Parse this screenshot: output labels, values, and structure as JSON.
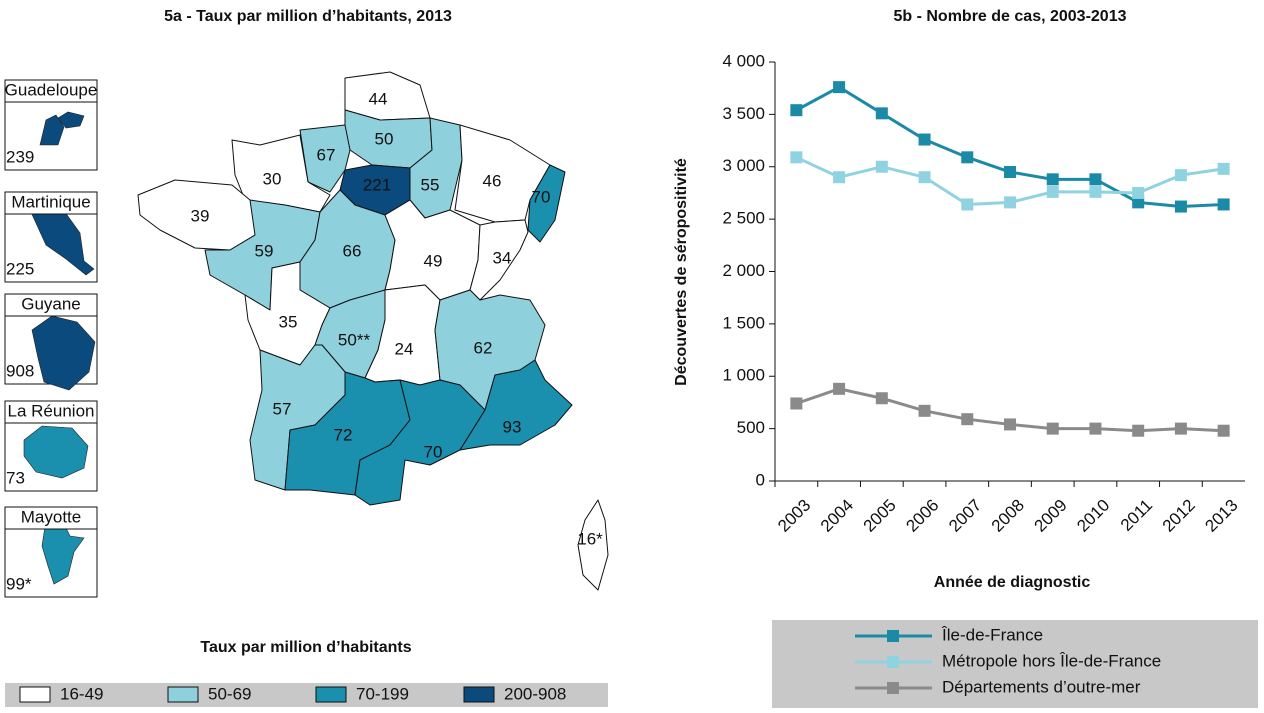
{
  "chart_data": [
    {
      "type": "map",
      "title": "5a - Taux par million d’habitants, 2013",
      "values": [
        44,
        50,
        67,
        30,
        39,
        221,
        55,
        46,
        70,
        59,
        66,
        49,
        34,
        35,
        50,
        24,
        62,
        57,
        72,
        70,
        93,
        16
      ],
      "value_labels": [
        "44",
        "50",
        "67",
        "30",
        "39",
        "221",
        "55",
        "46",
        "70",
        "59",
        "66",
        "49",
        "34",
        "35",
        "50**",
        "24",
        "62",
        "57",
        "72",
        "70",
        "93",
        "16*"
      ],
      "colors": [
        "#ffffff",
        "#8fd0dd",
        "#8fd0dd",
        "#ffffff",
        "#ffffff",
        "#0b4a7c",
        "#8fd0dd",
        "#ffffff",
        "#1a8fae",
        "#8fd0dd",
        "#8fd0dd",
        "#ffffff",
        "#ffffff",
        "#ffffff",
        "#8fd0dd",
        "#ffffff",
        "#8fd0dd",
        "#8fd0dd",
        "#1a8fae",
        "#1a8fae",
        "#1a8fae",
        "#ffffff"
      ],
      "insets": {
        "names": [
          "Guadeloupe",
          "Martinique",
          "Guyane",
          "La Réunion",
          "Mayotte"
        ],
        "values": [
          239,
          225,
          908,
          73,
          99
        ],
        "value_labels": [
          "239",
          "225",
          "908",
          "73",
          "99*"
        ],
        "colors": [
          "#0b4a7c",
          "#0b4a7c",
          "#0b4a7c",
          "#1a8fae",
          "#1a8fae"
        ]
      },
      "legend_title": "Taux par million d’habitants",
      "legend": {
        "labels": [
          "16-49",
          "50-69",
          "70-199",
          "200-908"
        ],
        "colors": [
          "#ffffff",
          "#8fd0dd",
          "#1a8fae",
          "#0b4a7c"
        ]
      }
    },
    {
      "type": "line",
      "title": "5b - Nombre de cas, 2003-2013",
      "categories": [
        2003,
        2004,
        2005,
        2006,
        2007,
        2008,
        2009,
        2010,
        2011,
        2012,
        2013
      ],
      "series": [
        {
          "name": "Île-de-France",
          "color": "#1a8aa6",
          "values": [
            3540,
            3760,
            3510,
            3260,
            3090,
            2950,
            2880,
            2880,
            2660,
            2620,
            2640
          ]
        },
        {
          "name": "Métropole hors Île-de-France",
          "color": "#8fd3e0",
          "values": [
            3090,
            2900,
            3000,
            2900,
            2640,
            2660,
            2760,
            2760,
            2750,
            2920,
            2980
          ]
        },
        {
          "name": "Départements d’outre-mer",
          "color": "#8a8a8a",
          "values": [
            740,
            880,
            790,
            670,
            590,
            540,
            500,
            500,
            480,
            500,
            480
          ]
        }
      ],
      "ylim": [
        0,
        4000
      ],
      "yticks": [
        0,
        500,
        {
          "value": 1000,
          "label": "1 000"
        },
        {
          "value": 1500,
          "label": "1 500"
        },
        {
          "value": 2000,
          "label": "2 000"
        },
        {
          "value": 2500,
          "label": "2 500"
        },
        {
          "value": 3000,
          "label": "3 000"
        },
        {
          "value": 3500,
          "label": "3 500"
        },
        {
          "value": 4000,
          "label": "4 000"
        }
      ],
      "xlabel": "Année de diagnostic",
      "ylabel": "Découvertes de séropositivité"
    }
  ]
}
